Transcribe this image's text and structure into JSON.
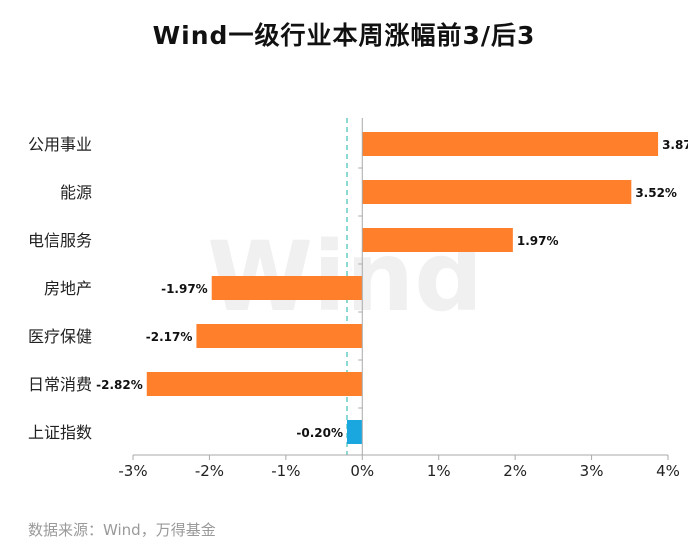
{
  "chart_data": {
    "type": "bar",
    "orientation": "horizontal",
    "title": "Wind一级行业本周涨幅前3/后3",
    "categories": [
      "公用事业",
      "能源",
      "电信服务",
      "房地产",
      "医疗保健",
      "日常消费",
      "上证指数"
    ],
    "values": [
      3.87,
      3.52,
      1.97,
      -1.97,
      -2.17,
      -2.82,
      -0.2
    ],
    "data_labels": [
      "3.87%",
      "3.52%",
      "1.97%",
      "-1.97%",
      "-2.17%",
      "-2.82%",
      "-0.20%"
    ],
    "xlim": [
      -3,
      4
    ],
    "x_ticks": [
      -3,
      -2,
      -1,
      0,
      1,
      2,
      3,
      4
    ],
    "x_tick_labels": [
      "-3%",
      "-2%",
      "-1%",
      "0%",
      "1%",
      "2%",
      "3%",
      "4%"
    ],
    "reference_line": {
      "value": -0.2,
      "style": "dashed"
    },
    "watermark": "Wind",
    "grid": false,
    "colors": {
      "industry_bar": "#ff7f2a",
      "index_bar": "#1aa7e0",
      "reference_line": "#3fbdb5",
      "axis": "#aaaaaa"
    }
  },
  "source_note": "数据来源：Wind，万得基金"
}
